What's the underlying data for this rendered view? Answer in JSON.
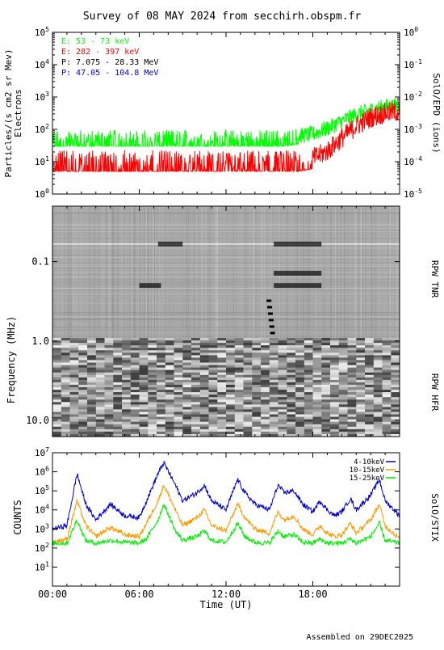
{
  "title": "Survey of 08 MAY 2024 from secchirh.obspm.fr",
  "footer": "Assembled on 29DEC2025",
  "time_axis": {
    "label": "Time (UT)",
    "ticks": [
      "00:00",
      "06:00",
      "12:00",
      "18:00"
    ],
    "range_hours": [
      0,
      24
    ]
  },
  "colors": {
    "electrons_low": "#00ff00",
    "electrons_high": "#ff0000",
    "protons_low": "#000000",
    "protons_high": "#0000ff",
    "stix_low": "#0000cc",
    "stix_mid": "#ff9900",
    "stix_high": "#00ee00",
    "axis": "#000000"
  },
  "chart_data": [
    {
      "type": "line",
      "panel": "epd",
      "ylabel_left": "Particles/(s cm2 sr Mev)",
      "ylabel_left_2": "Electrons",
      "ylabel_right": "SolO/EPD (ions)",
      "scale": "log",
      "ylim_left": [
        1,
        100000
      ],
      "ylim_right": [
        1e-05,
        1
      ],
      "left_ticks": [
        {
          "base": "10",
          "exp": "0"
        },
        {
          "base": "10",
          "exp": "1"
        },
        {
          "base": "10",
          "exp": "2"
        },
        {
          "base": "10",
          "exp": "3"
        },
        {
          "base": "10",
          "exp": "4"
        },
        {
          "base": "10",
          "exp": "5"
        }
      ],
      "right_ticks": [
        {
          "base": "10",
          "exp": "-5"
        },
        {
          "base": "10",
          "exp": "-4"
        },
        {
          "base": "10",
          "exp": "-3"
        },
        {
          "base": "10",
          "exp": "-2"
        },
        {
          "base": "10",
          "exp": "-1"
        },
        {
          "base": "10",
          "exp": "0"
        }
      ],
      "legend": [
        {
          "label": "E: 53 - 73 keV",
          "color": "#00ff00"
        },
        {
          "label": "E: 282 - 397 keV",
          "color": "#ff0000"
        },
        {
          "label": "P: 7.075 - 28.33 MeV",
          "color": "#000000"
        },
        {
          "label": "P: 47.05 - 104.8 MeV",
          "color": "#0000ff"
        }
      ],
      "series": [
        {
          "name": "E: 53 - 73 keV",
          "color": "#00ff00",
          "x": [
            0,
            2,
            4,
            6,
            8,
            10,
            12,
            14,
            15,
            16,
            17,
            18,
            19,
            20,
            21,
            22,
            23,
            24
          ],
          "y": [
            30,
            30,
            30,
            30,
            30,
            30,
            30,
            30,
            30,
            30,
            35,
            40,
            60,
            100,
            160,
            220,
            280,
            300
          ]
        },
        {
          "name": "E: 282 - 397 keV",
          "color": "#ff0000",
          "x": [
            0,
            2,
            4,
            6,
            8,
            10,
            12,
            14,
            15,
            16,
            17,
            18,
            19,
            20,
            21,
            22,
            23,
            24
          ],
          "y": [
            5,
            5,
            5,
            5,
            5,
            5,
            5,
            5,
            5,
            5,
            5,
            6,
            10,
            25,
            60,
            110,
            150,
            170
          ]
        }
      ]
    },
    {
      "type": "heatmap",
      "panel": "rpw",
      "ylabel": "Frequency (MHz)",
      "right_labels": [
        "RPW TNR",
        "RPW HFR"
      ],
      "y_ticks": [
        "0.1",
        "1.0",
        "10.0"
      ],
      "scale": "log",
      "ylim_mhz": [
        0.02,
        16
      ]
    },
    {
      "type": "line",
      "panel": "stix",
      "ylabel": "COUNTS",
      "ylabel_right": "SolO/STIX",
      "scale": "log",
      "ylim": [
        1,
        10000000
      ],
      "y_ticks": [
        {
          "base": "10",
          "exp": "1"
        },
        {
          "base": "10",
          "exp": "2"
        },
        {
          "base": "10",
          "exp": "3"
        },
        {
          "base": "10",
          "exp": "4"
        },
        {
          "base": "10",
          "exp": "5"
        },
        {
          "base": "10",
          "exp": "6"
        },
        {
          "base": "10",
          "exp": "7"
        }
      ],
      "legend": [
        {
          "label": "4-10keV",
          "color": "#0000cc"
        },
        {
          "label": "10-15keV",
          "color": "#ff9900"
        },
        {
          "label": "15-25keV",
          "color": "#00ee00"
        }
      ],
      "series": [
        {
          "name": "4-10keV",
          "color": "#0000cc",
          "x": [
            0,
            1,
            1.7,
            2.3,
            3,
            4,
            5,
            6,
            6.5,
            7.3,
            7.7,
            8.5,
            9,
            10,
            10.5,
            11,
            12,
            12.8,
            13.3,
            14,
            15,
            15.6,
            16,
            16.7,
            17.3,
            18,
            18.5,
            19,
            19.5,
            20,
            20.6,
            21,
            22,
            22.6,
            23,
            24
          ],
          "y": [
            1000,
            1500,
            800000,
            20000,
            3000,
            20000,
            5000,
            4000,
            30000,
            800000,
            3000000,
            200000,
            30000,
            80000,
            200000,
            30000,
            10000,
            400000,
            80000,
            20000,
            10000,
            200000,
            80000,
            100000,
            20000,
            8000,
            30000,
            10000,
            5000,
            8000,
            40000,
            10000,
            60000,
            400000,
            30000,
            5000
          ]
        },
        {
          "name": "10-15keV",
          "color": "#ff9900",
          "x": [
            0,
            1,
            1.7,
            2.3,
            3,
            4,
            5,
            6,
            6.5,
            7.3,
            7.7,
            8.5,
            9,
            10,
            10.5,
            11,
            12,
            12.8,
            13.3,
            14,
            15,
            15.6,
            16,
            16.7,
            17.3,
            18,
            18.5,
            19,
            19.5,
            20,
            20.6,
            21,
            22,
            22.6,
            23,
            24
          ],
          "y": [
            200,
            300,
            30000,
            1500,
            400,
            1200,
            500,
            400,
            2000,
            30000,
            200000,
            10000,
            1500,
            4000,
            10000,
            1500,
            800,
            20000,
            4000,
            1000,
            600,
            8000,
            3000,
            5000,
            1000,
            500,
            1500,
            600,
            400,
            500,
            2000,
            600,
            3000,
            20000,
            1500,
            300
          ]
        },
        {
          "name": "15-25keV",
          "color": "#00ee00",
          "x": [
            0,
            1,
            1.7,
            2.3,
            3,
            4,
            5,
            6,
            6.5,
            7.3,
            7.7,
            8.5,
            9,
            10,
            10.5,
            11,
            12,
            12.8,
            13.3,
            14,
            15,
            15.6,
            16,
            16.7,
            17.3,
            18,
            18.5,
            19,
            19.5,
            20,
            20.6,
            21,
            22,
            22.6,
            23,
            24
          ],
          "y": [
            180,
            180,
            3000,
            250,
            180,
            250,
            200,
            180,
            300,
            3000,
            20000,
            800,
            250,
            400,
            800,
            250,
            200,
            2000,
            400,
            200,
            180,
            800,
            400,
            500,
            200,
            180,
            300,
            180,
            180,
            180,
            300,
            180,
            400,
            2000,
            250,
            180
          ]
        }
      ]
    }
  ]
}
